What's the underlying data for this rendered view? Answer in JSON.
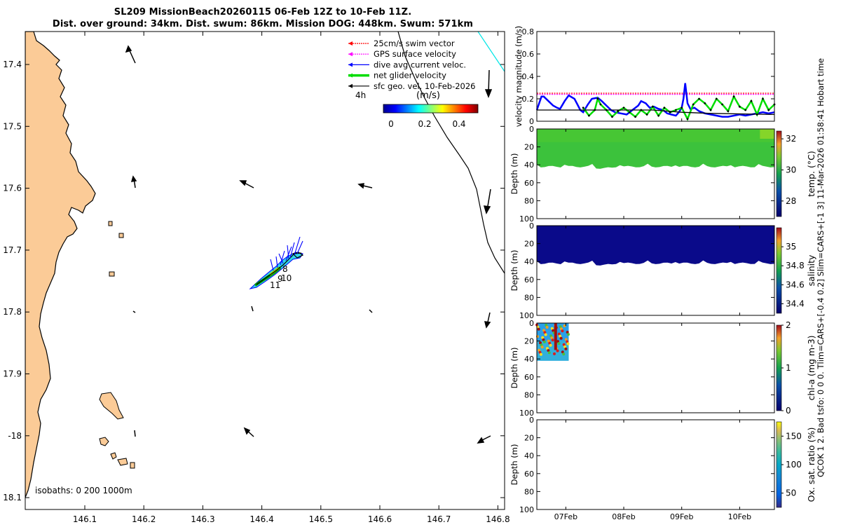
{
  "header": {
    "title_line1": "SL209 MissionBeach20260115 06-Feb 12Z to 10-Feb 11Z.",
    "title_line2": "Dist. over ground: 34km. Dist. swum: 86km. Mission DOG: 448km. Swum: 571km"
  },
  "side_label": "QCOK 1  2. Bad tsfo: 0  0  0. Tlim=CARS+[-0.4  0.2] Slim=CARS+[-1  3] 11-Mar-2026 01:58:41 Hobart time",
  "map": {
    "lon_ticks": [
      "146.1",
      "146.2",
      "146.3",
      "146.4",
      "146.5",
      "146.6",
      "146.7",
      "146.8"
    ],
    "lat_ticks": [
      "17.4",
      "17.5",
      "17.6",
      "17.7",
      "17.8",
      "17.9",
      "-18",
      "18.1"
    ],
    "legend": [
      {
        "label": "25cm/s swim vector",
        "color": "#ff0000"
      },
      {
        "label": "GPS surface velocity",
        "color": "#ff00ff"
      },
      {
        "label": "dive avg current veloc.",
        "color": "#0000ff"
      },
      {
        "label": "net glider velocity",
        "color": "#00dd00"
      },
      {
        "label": "sfc geo. vel. 10-Feb-2026",
        "color": "#000000"
      }
    ],
    "legend_interval": "4h",
    "colorbar_title": "(m/s)",
    "colorbar_ticks": [
      "0",
      "0.2",
      "0.4"
    ],
    "labels": [
      "8",
      "9",
      "10",
      "11"
    ],
    "isobaths_text": "isobaths: 0    200  1000m",
    "land_color": "#fbcb97"
  },
  "chart_data": [
    {
      "type": "line",
      "title": "velocity magnitude",
      "ylabel": "velocity magnitude (m/s)",
      "ylim": [
        0,
        0.8
      ],
      "yticks": [
        "0",
        "0.2",
        "0.4",
        "0.6",
        "0.8"
      ],
      "xlim": [
        6.5,
        10.6
      ],
      "series": [
        {
          "name": "25cm/s swim vector",
          "color": "#ff0000",
          "x": [
            6.5,
            10.6
          ],
          "values": [
            0.25,
            0.25
          ]
        },
        {
          "name": "GPS surface velocity",
          "color": "#ff00ff",
          "x": [
            6.5,
            10.6
          ],
          "values": [
            0.24,
            0.24
          ]
        },
        {
          "name": "dive avg current veloc.",
          "color": "#0000ff",
          "x": [
            6.5,
            6.58,
            6.62,
            6.7,
            6.78,
            6.85,
            6.9,
            6.98,
            7.05,
            7.15,
            7.2,
            7.25,
            7.3,
            7.38,
            7.45,
            7.55,
            7.62,
            7.7,
            7.78,
            7.85,
            7.95,
            8.05,
            8.15,
            8.25,
            8.3,
            8.38,
            8.45,
            8.52,
            8.6,
            8.68,
            8.75,
            8.82,
            8.9,
            8.95,
            9.0,
            9.03,
            9.06,
            9.1,
            9.15,
            9.22,
            9.3,
            9.4,
            9.5,
            9.6,
            9.7,
            9.8,
            9.9,
            10.0,
            10.1,
            10.2,
            10.3,
            10.4,
            10.5,
            10.6
          ],
          "values": [
            0.1,
            0.22,
            0.22,
            0.18,
            0.14,
            0.12,
            0.11,
            0.18,
            0.23,
            0.2,
            0.15,
            0.1,
            0.08,
            0.15,
            0.2,
            0.21,
            0.18,
            0.14,
            0.1,
            0.08,
            0.07,
            0.06,
            0.1,
            0.14,
            0.18,
            0.16,
            0.12,
            0.13,
            0.11,
            0.1,
            0.07,
            0.06,
            0.05,
            0.08,
            0.12,
            0.2,
            0.34,
            0.16,
            0.11,
            0.12,
            0.09,
            0.07,
            0.06,
            0.05,
            0.04,
            0.04,
            0.05,
            0.06,
            0.05,
            0.06,
            0.07,
            0.08,
            0.07,
            0.08
          ]
        },
        {
          "name": "net glider velocity",
          "color": "#00dd00",
          "x": [
            7.3,
            7.4,
            7.5,
            7.55,
            7.6,
            7.7,
            7.8,
            7.9,
            8.0,
            8.1,
            8.2,
            8.3,
            8.4,
            8.5,
            8.6,
            8.7,
            8.8,
            8.9,
            9.0,
            9.1,
            9.2,
            9.3,
            9.4,
            9.5,
            9.6,
            9.7,
            9.8,
            9.9,
            10.0,
            10.1,
            10.2,
            10.3,
            10.4,
            10.5,
            10.6
          ],
          "values": [
            0.12,
            0.05,
            0.1,
            0.2,
            0.15,
            0.1,
            0.04,
            0.09,
            0.12,
            0.08,
            0.04,
            0.1,
            0.06,
            0.13,
            0.05,
            0.12,
            0.08,
            0.1,
            0.12,
            0.02,
            0.15,
            0.2,
            0.16,
            0.1,
            0.2,
            0.15,
            0.09,
            0.22,
            0.13,
            0.1,
            0.18,
            0.06,
            0.2,
            0.1,
            0.15
          ]
        },
        {
          "name": "sfc geo. vel.",
          "color": "#000000",
          "x": [
            6.5,
            7.5,
            8.5,
            9.0,
            9.5,
            10.6
          ],
          "values": [
            0.1,
            0.1,
            0.1,
            0.08,
            0.07,
            0.06
          ]
        }
      ]
    },
    {
      "type": "heatmap",
      "title": "temperature section",
      "ylabel": "Depth (m)",
      "ylim": [
        0,
        100
      ],
      "yticks": [
        "0",
        "20",
        "40",
        "60",
        "80",
        "100"
      ],
      "colorbar_label": "temp. (°C)",
      "colorbar_ticks": [
        "28",
        "30",
        "32"
      ],
      "colorbar_range": [
        27,
        32.5
      ],
      "value_typical": 30.2,
      "data_bottom_depth": 42,
      "xlim": [
        6.5,
        10.6
      ]
    },
    {
      "type": "heatmap",
      "title": "salinity section",
      "ylabel": "Depth (m)",
      "ylim": [
        0,
        100
      ],
      "yticks": [
        "0",
        "20",
        "40",
        "60",
        "80",
        "100"
      ],
      "colorbar_label": "salinity",
      "colorbar_ticks": [
        "34.4",
        "34.6",
        "34.8",
        "35"
      ],
      "colorbar_range": [
        34.3,
        35.2
      ],
      "value_typical": 34.3,
      "data_bottom_depth": 42,
      "xlim": [
        6.5,
        10.6
      ]
    },
    {
      "type": "heatmap",
      "title": "chlorophyll section",
      "ylabel": "Depth (m)",
      "ylim": [
        0,
        100
      ],
      "yticks": [
        "0",
        "20",
        "40",
        "60",
        "80",
        "100"
      ],
      "colorbar_label": "chl-a  (mg m-3)",
      "colorbar_ticks": [
        "0",
        "1",
        "2"
      ],
      "colorbar_range": [
        0,
        2
      ],
      "value_typical": 0.7,
      "data_x_range": [
        6.5,
        7.05
      ],
      "data_bottom_depth": 42,
      "xlim": [
        6.5,
        10.6
      ]
    },
    {
      "type": "heatmap",
      "title": "oxygen section",
      "ylabel": "Depth (m)",
      "ylim": [
        0,
        100
      ],
      "yticks": [
        "0",
        "20",
        "40",
        "60",
        "80",
        "100"
      ],
      "colorbar_label": "Ox. sat. ratio (%)",
      "colorbar_ticks": [
        "50",
        "100",
        "150"
      ],
      "colorbar_range": [
        25,
        175
      ],
      "xlim": [
        6.5,
        10.6
      ]
    }
  ],
  "time_axis": {
    "labels": [
      "07Feb",
      "08Feb",
      "09Feb",
      "10Feb"
    ],
    "positions": [
      7,
      8,
      9,
      10
    ]
  }
}
